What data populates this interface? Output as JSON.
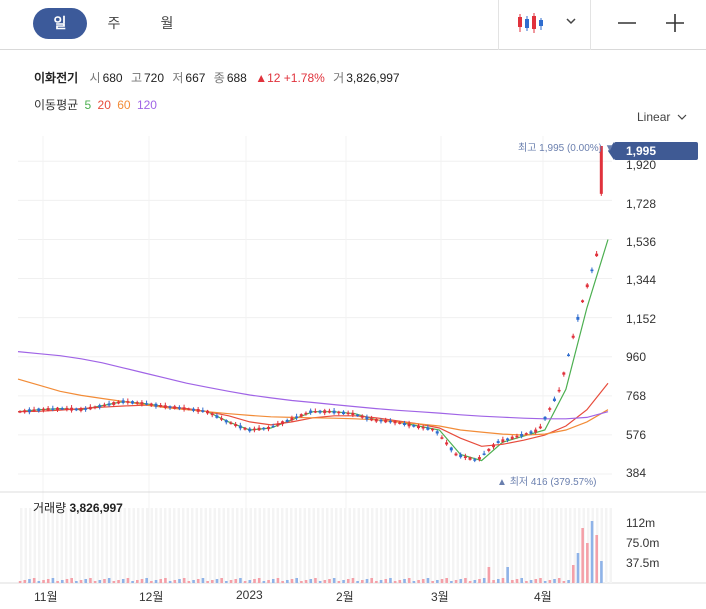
{
  "tabs": [
    {
      "label": "일",
      "active": true
    },
    {
      "label": "주",
      "active": false
    },
    {
      "label": "월",
      "active": false
    }
  ],
  "toolbar": {
    "chart_type_icon": "candlestick-icon",
    "dropdown_icon": "chevron-down-icon",
    "zoom_out_icon": "minus-icon",
    "zoom_in_icon": "plus-icon"
  },
  "stock": {
    "name": "이화전기",
    "open_label": "시",
    "open": "680",
    "high_label": "고",
    "high": "720",
    "low_label": "저",
    "low": "667",
    "close_label": "종",
    "close": "688",
    "change": "▲12",
    "change_pct": "+1.78%",
    "volume_label": "거",
    "volume": "3,826,997"
  },
  "moving_average": {
    "label": "이동평균",
    "periods": [
      {
        "value": "5",
        "color": "#4caf50"
      },
      {
        "value": "20",
        "color": "#e74c3c"
      },
      {
        "value": "60",
        "color": "#f28c38"
      },
      {
        "value": "120",
        "color": "#a064e6"
      }
    ]
  },
  "scale_selector": {
    "label": "Linear"
  },
  "colors": {
    "up": "#e0323c",
    "down": "#2f6dcf",
    "volume_up": "#f4a0a8",
    "volume_down": "#8fb3e8",
    "price_tag": "#3f5a94",
    "tab_active": "#3c5a9a"
  },
  "annotations": {
    "high": "최고 1,995 (0.00%)",
    "low": "최저 416 (379.57%)",
    "current_price": "1,995"
  },
  "volume_panel": {
    "label": "거래량",
    "value": "3,826,997",
    "axis_ticks": [
      "112m",
      "75.0m",
      "37.5m"
    ]
  },
  "chart_data": {
    "type": "line",
    "title": "",
    "y_scale": "linear",
    "y_ticks": [
      "1,920",
      "1,728",
      "1,536",
      "1,344",
      "1,152",
      "960",
      "768",
      "576",
      "384"
    ],
    "ylim": [
      384,
      2000
    ],
    "x_ticks": [
      "11월",
      "12월",
      "2023",
      "2월",
      "3월",
      "4월"
    ],
    "series": [
      {
        "name": "5",
        "color": "#4caf50",
        "values": [
          690,
          700,
          705,
          700,
          720,
          740,
          730,
          715,
          705,
          690,
          640,
          600,
          610,
          650,
          690,
          690,
          680,
          650,
          640,
          620,
          600,
          480,
          450,
          540,
          570,
          600,
          800,
          1200,
          1536
        ]
      },
      {
        "name": "20",
        "color": "#e74c3c",
        "values": [
          690,
          692,
          698,
          705,
          712,
          718,
          722,
          715,
          705,
          690,
          670,
          640,
          625,
          640,
          660,
          670,
          670,
          660,
          645,
          630,
          610,
          560,
          520,
          530,
          550,
          575,
          620,
          700,
          830
        ]
      },
      {
        "name": "60",
        "color": "#f28c38",
        "values": [
          850,
          820,
          790,
          770,
          755,
          740,
          725,
          710,
          700,
          690,
          680,
          672,
          665,
          662,
          660,
          658,
          655,
          650,
          640,
          630,
          620,
          600,
          590,
          580,
          575,
          580,
          600,
          640,
          700
        ]
      },
      {
        "name": "120",
        "color": "#a064e6",
        "values": [
          985,
          975,
          965,
          950,
          930,
          905,
          880,
          855,
          830,
          810,
          790,
          772,
          758,
          745,
          735,
          725,
          715,
          705,
          697,
          690,
          683,
          675,
          668,
          663,
          658,
          655,
          655,
          662,
          690
        ]
      }
    ]
  }
}
